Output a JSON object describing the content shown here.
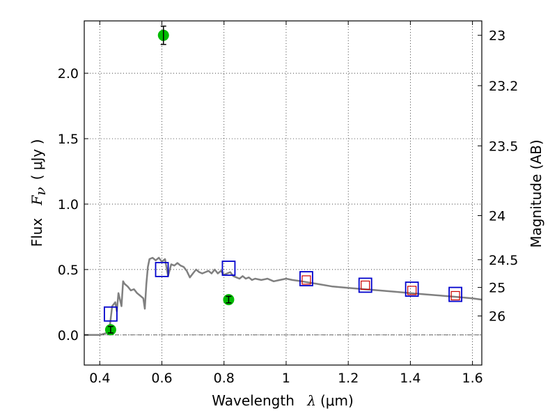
{
  "chart_data": {
    "type": "scatter",
    "xlabel": "Wavelength",
    "xlabel_symbol": "λ",
    "xlabel_unit": "(μm)",
    "ylabel": "Flux",
    "ylabel_symbol": "F",
    "ylabel_subscript": "ν",
    "ylabel_unit": "( μJy )",
    "y2label": "Magnitude (AB)",
    "xlim": [
      0.35,
      1.63
    ],
    "ylim": [
      -0.23,
      2.4
    ],
    "grid": true,
    "x_ticks": [
      0.4,
      0.6,
      0.8,
      1.0,
      1.2,
      1.4,
      1.6
    ],
    "x_tick_labels": [
      "0.4",
      "0.6",
      "0.8",
      "1",
      "1.2",
      "1.4",
      "1.6"
    ],
    "y_ticks": [
      0.0,
      0.5,
      1.0,
      1.5,
      2.0
    ],
    "y_tick_labels": [
      "0.0",
      "0.5",
      "1.0",
      "1.5",
      "2.0"
    ],
    "y2_ticks": [
      {
        "label": "23",
        "flux": 2.29
      },
      {
        "label": "23.2",
        "flux": 1.905
      },
      {
        "label": "23.5",
        "flux": 1.445
      },
      {
        "label": "24",
        "flux": 0.912
      },
      {
        "label": "24.5",
        "flux": 0.575
      },
      {
        "label": "25",
        "flux": 0.363
      },
      {
        "label": "26",
        "flux": 0.145
      }
    ],
    "zero_line": 0.0,
    "series": [
      {
        "style": "line",
        "color": "#808080",
        "x": [
          0.35,
          0.4,
          0.43,
          0.44,
          0.45,
          0.455,
          0.46,
          0.47,
          0.475,
          0.48,
          0.49,
          0.5,
          0.51,
          0.52,
          0.53,
          0.54,
          0.545,
          0.55,
          0.555,
          0.56,
          0.57,
          0.58,
          0.59,
          0.6,
          0.61,
          0.62,
          0.63,
          0.64,
          0.65,
          0.66,
          0.67,
          0.68,
          0.69,
          0.7,
          0.71,
          0.72,
          0.73,
          0.74,
          0.75,
          0.76,
          0.77,
          0.78,
          0.79,
          0.8,
          0.81,
          0.82,
          0.83,
          0.84,
          0.85,
          0.86,
          0.87,
          0.88,
          0.89,
          0.9,
          0.92,
          0.94,
          0.96,
          0.98,
          1.0,
          1.02,
          1.05,
          1.1,
          1.15,
          1.2,
          1.25,
          1.3,
          1.35,
          1.4,
          1.45,
          1.5,
          1.55,
          1.6,
          1.63
        ],
        "values": [
          0.0,
          0.0,
          0.02,
          0.22,
          0.25,
          0.18,
          0.32,
          0.22,
          0.41,
          0.39,
          0.37,
          0.34,
          0.35,
          0.32,
          0.3,
          0.28,
          0.2,
          0.39,
          0.52,
          0.58,
          0.59,
          0.57,
          0.59,
          0.56,
          0.58,
          0.45,
          0.54,
          0.53,
          0.55,
          0.53,
          0.52,
          0.49,
          0.44,
          0.47,
          0.5,
          0.48,
          0.47,
          0.48,
          0.49,
          0.47,
          0.5,
          0.47,
          0.49,
          0.46,
          0.47,
          0.48,
          0.45,
          0.44,
          0.43,
          0.45,
          0.43,
          0.44,
          0.42,
          0.43,
          0.42,
          0.43,
          0.41,
          0.42,
          0.43,
          0.42,
          0.41,
          0.39,
          0.37,
          0.36,
          0.35,
          0.34,
          0.33,
          0.32,
          0.31,
          0.3,
          0.29,
          0.28,
          0.27
        ]
      },
      {
        "style": "open-square",
        "color": "#0000cc",
        "x": [
          0.435,
          0.6,
          0.815,
          1.065,
          1.255,
          1.405,
          1.545
        ],
        "values": [
          0.16,
          0.5,
          0.51,
          0.43,
          0.38,
          0.35,
          0.31
        ]
      },
      {
        "style": "small-square",
        "color": "#cc0000",
        "x": [
          1.065,
          1.255,
          1.405,
          1.545
        ],
        "values": [
          0.42,
          0.38,
          0.34,
          0.3
        ]
      },
      {
        "style": "filled-circle",
        "color": "#00bb00",
        "x": [
          0.435,
          0.605,
          0.815
        ],
        "values": [
          0.04,
          2.29,
          0.27
        ],
        "errors": [
          0.025,
          0.07,
          0.025
        ]
      }
    ]
  }
}
